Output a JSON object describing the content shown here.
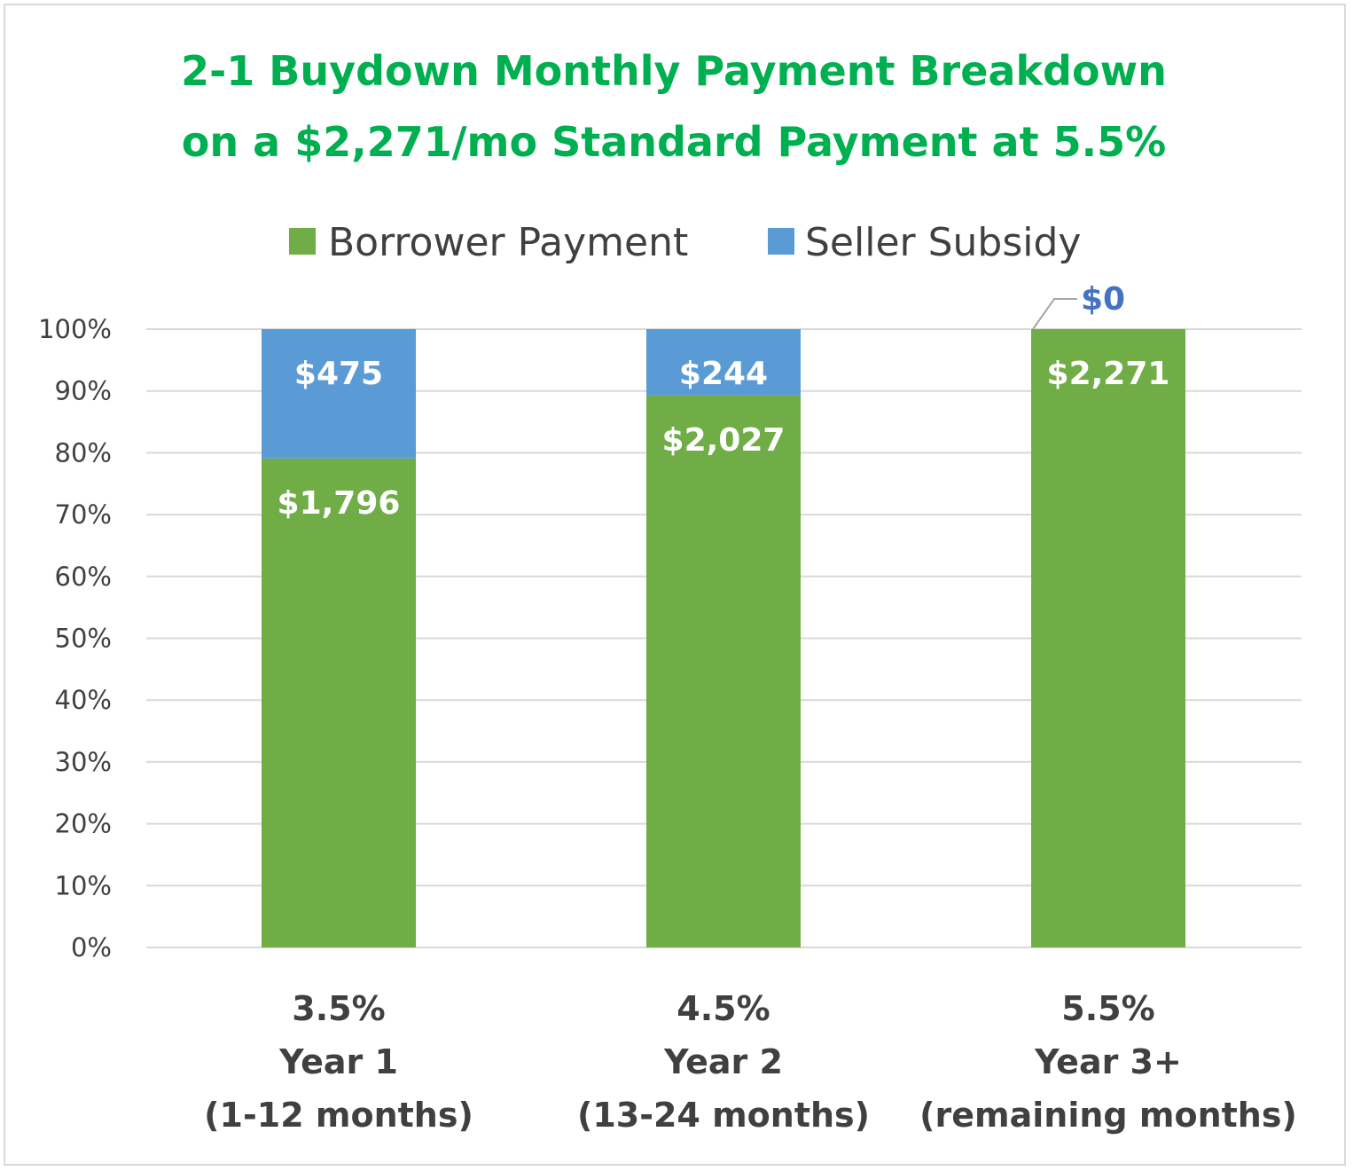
{
  "chart_data": {
    "type": "bar",
    "stacked": true,
    "normalized": true,
    "title": [
      "2-1 Buydown Monthly Payment Breakdown",
      "on a $2,271/mo Standard Payment at 5.5%"
    ],
    "categories": [
      [
        "3.5%",
        "Year 1",
        "(1-12 months)"
      ],
      [
        "4.5%",
        "Year 2",
        "(13-24 months)"
      ],
      [
        "5.5%",
        "Year 3+",
        "(remaining months)"
      ]
    ],
    "series": [
      {
        "name": "Borrower Payment",
        "color": "#70ad47",
        "values": [
          1796,
          2027,
          2271
        ],
        "labels": [
          "$1,796",
          "$2,027",
          "$2,271"
        ]
      },
      {
        "name": "Seller Subsidy",
        "color": "#5b9bd5",
        "values": [
          475,
          244,
          0
        ],
        "labels": [
          "$475",
          "$244",
          "$0"
        ]
      }
    ],
    "ylim": [
      0,
      100
    ],
    "yticks": [
      "0%",
      "10%",
      "20%",
      "30%",
      "40%",
      "50%",
      "60%",
      "70%",
      "80%",
      "90%",
      "100%"
    ],
    "grid": true,
    "legend": "top",
    "colors": {
      "title": "#00b050",
      "text": "#404040",
      "grid": "#d9d9d9",
      "zero_label": "#4472c4"
    }
  }
}
